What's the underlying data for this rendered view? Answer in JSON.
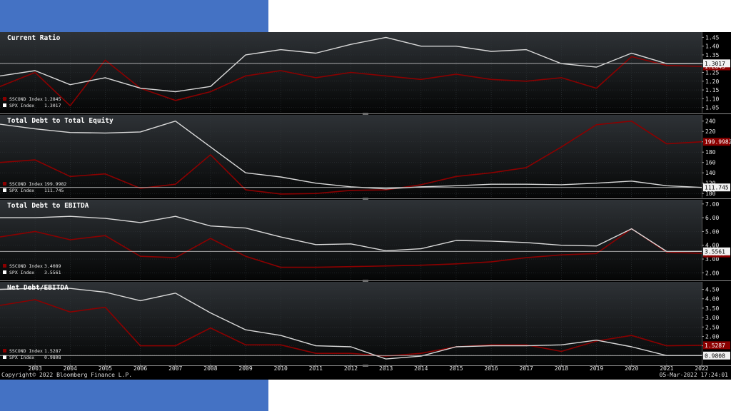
{
  "footer": {
    "copyright": "Copyright© 2022 Bloomberg Finance L.P.",
    "timestamp": "05-Mar-2022 17:24:01"
  },
  "colors": {
    "sscond": "#8b0000",
    "spx": "#d9d9d9",
    "background": "#000000",
    "slide_accent": "#4472c4"
  },
  "chart_data": [
    {
      "type": "line",
      "title": "Current Ratio",
      "x": [
        "2002",
        "2003",
        "2004",
        "2005",
        "2006",
        "2007",
        "2008",
        "2009",
        "2010",
        "2011",
        "2012",
        "2013",
        "2014",
        "2015",
        "2016",
        "2017",
        "2018",
        "2019",
        "2020",
        "2021",
        "2022"
      ],
      "series": [
        {
          "name": "SSCOND Index",
          "last": "1.2845",
          "values": [
            1.17,
            1.25,
            1.06,
            1.32,
            1.16,
            1.09,
            1.14,
            1.23,
            1.26,
            1.22,
            1.25,
            1.23,
            1.21,
            1.24,
            1.21,
            1.2,
            1.22,
            1.16,
            1.34,
            1.29,
            1.2845
          ]
        },
        {
          "name": "SPX Index",
          "last": "1.3017",
          "values": [
            1.23,
            1.26,
            1.18,
            1.22,
            1.16,
            1.14,
            1.17,
            1.35,
            1.38,
            1.36,
            1.41,
            1.45,
            1.4,
            1.4,
            1.37,
            1.38,
            1.3,
            1.28,
            1.36,
            1.3,
            1.3017
          ]
        }
      ],
      "ylim": [
        1.02,
        1.48
      ],
      "yticks": [
        "1.05",
        "1.10",
        "1.15",
        "1.20",
        "1.25",
        "1.30",
        "1.35",
        "1.40",
        "1.45"
      ]
    },
    {
      "type": "line",
      "title": "Total Debt to Total Equity",
      "x": [
        "2002",
        "2003",
        "2004",
        "2005",
        "2006",
        "2007",
        "2008",
        "2009",
        "2010",
        "2011",
        "2012",
        "2013",
        "2014",
        "2015",
        "2016",
        "2017",
        "2018",
        "2019",
        "2020",
        "2021",
        "2022"
      ],
      "series": [
        {
          "name": "SSCOND Index",
          "last": "199.9982",
          "values": [
            160,
            165,
            133,
            138,
            110,
            118,
            175,
            107,
            99,
            100,
            106,
            107,
            117,
            133,
            140,
            150,
            190,
            233,
            240,
            196,
            199.9982
          ]
        },
        {
          "name": "SPX Index",
          "last": "111.745",
          "values": [
            234,
            225,
            218,
            217,
            219,
            240,
            190,
            140,
            132,
            120,
            113,
            109,
            113,
            115,
            118,
            118,
            117,
            120,
            124,
            115,
            111.745
          ]
        }
      ],
      "ylim": [
        92,
        252
      ],
      "yticks": [
        "100",
        "120",
        "140",
        "160",
        "180",
        "200",
        "220",
        "240"
      ]
    },
    {
      "type": "line",
      "title": "Total Debt to EBITDA",
      "x": [
        "2002",
        "2003",
        "2004",
        "2005",
        "2006",
        "2007",
        "2008",
        "2009",
        "2010",
        "2011",
        "2012",
        "2013",
        "2014",
        "2015",
        "2016",
        "2017",
        "2018",
        "2019",
        "2020",
        "2021",
        "2022"
      ],
      "series": [
        {
          "name": "SSCOND Index",
          "last": "3.4089",
          "values": [
            4.6,
            5.0,
            4.4,
            4.7,
            3.2,
            3.1,
            4.5,
            3.2,
            2.4,
            2.4,
            2.45,
            2.5,
            2.55,
            2.65,
            2.8,
            3.1,
            3.3,
            3.4,
            5.2,
            3.5,
            3.4089
          ]
        },
        {
          "name": "SPX Index",
          "last": "3.5561",
          "values": [
            6.0,
            6.0,
            6.1,
            5.95,
            5.65,
            6.1,
            5.4,
            5.25,
            4.6,
            4.05,
            4.1,
            3.6,
            3.75,
            4.35,
            4.3,
            4.2,
            4.0,
            3.95,
            5.2,
            3.55,
            3.5561
          ]
        }
      ],
      "ylim": [
        1.5,
        7.3
      ],
      "yticks": [
        "2.00",
        "3.00",
        "4.00",
        "5.00",
        "6.00",
        "7.00"
      ]
    },
    {
      "type": "line",
      "title": "Net Debt/EBITDA",
      "x": [
        "2002",
        "2003",
        "2004",
        "2005",
        "2006",
        "2007",
        "2008",
        "2009",
        "2010",
        "2011",
        "2012",
        "2013",
        "2014",
        "2015",
        "2016",
        "2017",
        "2018",
        "2019",
        "2020",
        "2021",
        "2022"
      ],
      "series": [
        {
          "name": "SSCOND Index",
          "last": "1.5287",
          "values": [
            3.65,
            3.95,
            3.3,
            3.55,
            1.5,
            1.5,
            2.45,
            1.55,
            1.55,
            1.1,
            1.1,
            0.95,
            1.1,
            1.45,
            1.55,
            1.55,
            1.2,
            1.75,
            2.05,
            1.5,
            1.5287
          ]
        },
        {
          "name": "SPX Index",
          "last": "0.9808",
          "values": [
            4.5,
            4.55,
            4.55,
            4.35,
            3.9,
            4.3,
            3.25,
            2.35,
            2.05,
            1.5,
            1.45,
            0.8,
            0.95,
            1.45,
            1.5,
            1.5,
            1.55,
            1.8,
            1.45,
            0.98,
            0.9808
          ]
        }
      ],
      "ylim": [
        0.5,
        4.9
      ],
      "yticks": [
        "1.00",
        "1.50",
        "2.00",
        "2.50",
        "3.00",
        "3.50",
        "4.00",
        "4.50"
      ]
    }
  ],
  "xaxis_labels": [
    "2003",
    "2004",
    "2005",
    "2006",
    "2007",
    "2008",
    "2009",
    "2010",
    "2011",
    "2012",
    "2013",
    "2014",
    "2015",
    "2016",
    "2017",
    "2018",
    "2019",
    "2020",
    "2021",
    "2022"
  ]
}
